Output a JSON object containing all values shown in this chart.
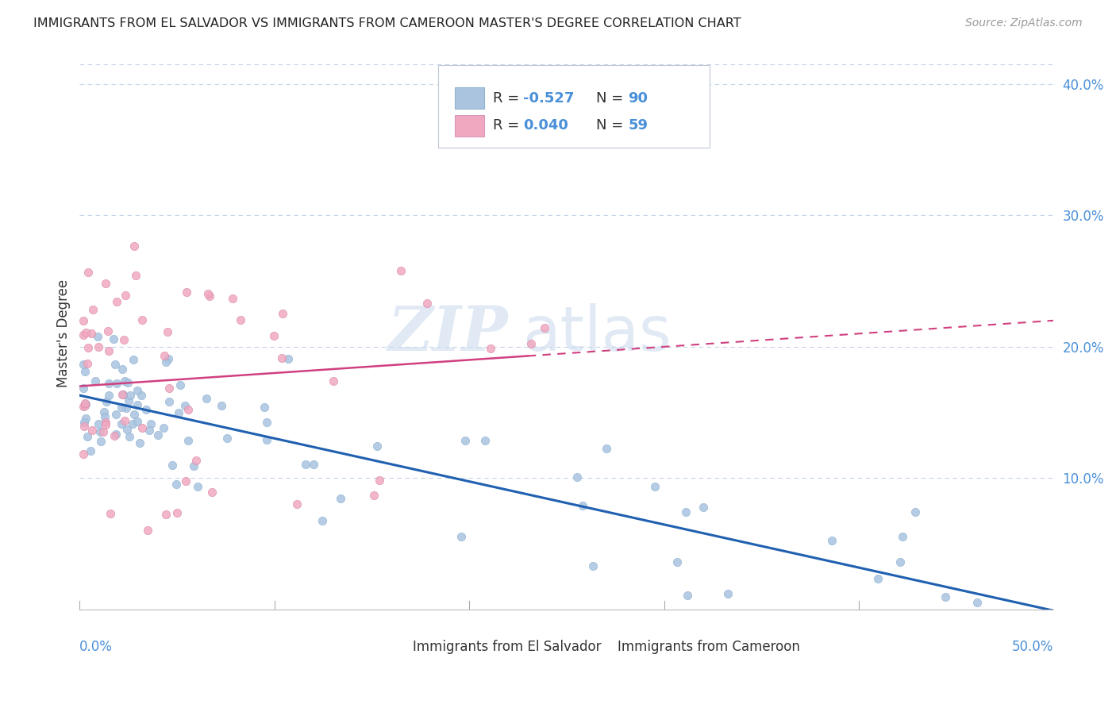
{
  "title": "IMMIGRANTS FROM EL SALVADOR VS IMMIGRANTS FROM CAMEROON MASTER'S DEGREE CORRELATION CHART",
  "source": "Source: ZipAtlas.com",
  "watermark_1": "ZIP",
  "watermark_2": "atlas",
  "ylabel": "Master's Degree",
  "legend_labels": [
    "Immigrants from El Salvador",
    "Immigrants from Cameroon"
  ],
  "r_blue": -0.527,
  "r_pink": 0.04,
  "n_blue": 90,
  "n_pink": 59,
  "blue_color": "#aac4e0",
  "pink_color": "#f0a8c0",
  "blue_line_color": "#2060b0",
  "pink_line_color": "#d04080",
  "r_value_color": "#4a90d9",
  "axis_label_color": "#4a90d9",
  "text_color": "#333333",
  "xlim": [
    0.0,
    0.5
  ],
  "ylim": [
    0.0,
    0.42
  ],
  "background_color": "#ffffff",
  "grid_color": "#c8d4e8",
  "blue_intercept": 0.163,
  "blue_slope": -0.328,
  "pink_intercept": 0.17,
  "pink_slope": 0.1
}
